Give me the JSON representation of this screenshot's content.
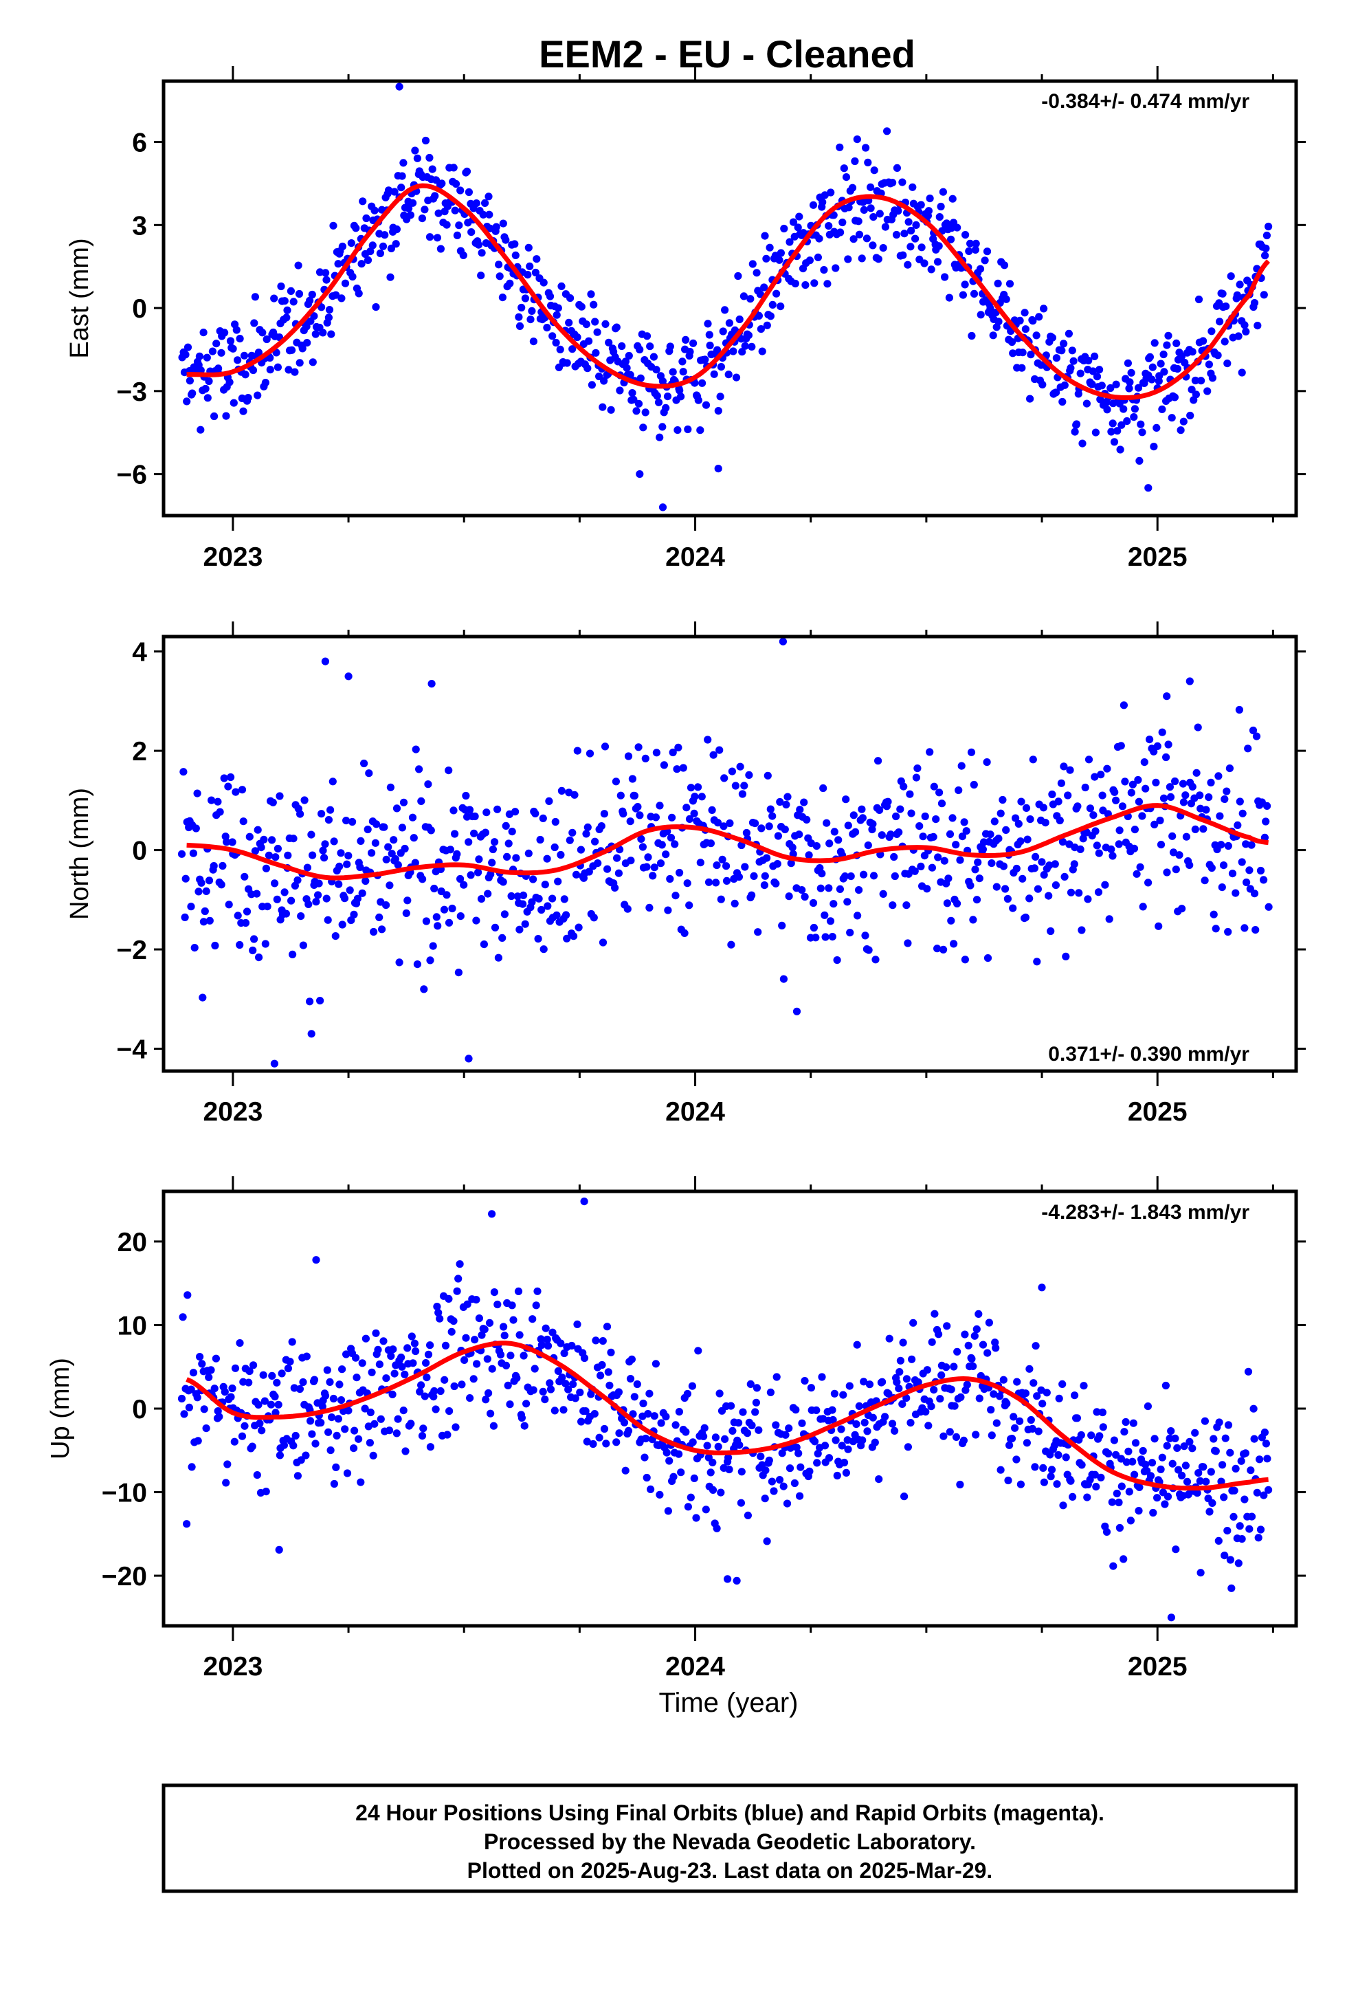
{
  "title": "EEM2  - EU - Cleaned",
  "colors": {
    "points": "#0000ff",
    "fit": "#ff0000",
    "frame": "#000000"
  },
  "chart_data": [
    {
      "type": "scatter",
      "ylabel": "East (mm)",
      "rate_label": "-0.384+/- 0.474 mm/yr",
      "rate_position": "top-right",
      "xlim": [
        2022.85,
        2025.3
      ],
      "ylim": [
        -7.5,
        8.2
      ],
      "x_ticks": [
        2023,
        2024,
        2025
      ],
      "x_tick_labels": [
        "2023",
        "2024",
        "2025"
      ],
      "y_ticks": [
        -6,
        -3,
        0,
        3,
        6
      ],
      "y_tick_labels": [
        "−6",
        "−3",
        "0",
        "3",
        "6"
      ],
      "x_minor_ticks": [
        2023.25,
        2023.5,
        2023.75,
        2024.25,
        2024.5,
        2024.75,
        2025.25
      ],
      "grid": false,
      "points": {
        "series": "Final Orbits",
        "color": "#0000ff",
        "x_start": 2022.89,
        "x_end": 2025.24,
        "count": 920,
        "scatter_sd": 0.95,
        "outliers": [
          [
            2023.36,
            8.0
          ],
          [
            2023.93,
            -7.2
          ],
          [
            2023.88,
            -6.0
          ],
          [
            2024.98,
            -6.5
          ],
          [
            2022.93,
            -4.4
          ],
          [
            2024.05,
            -5.8
          ]
        ]
      },
      "fit": {
        "series": "Model",
        "color": "#ff0000",
        "x": [
          2022.9,
          2023.0,
          2023.1,
          2023.2,
          2023.3,
          2023.4,
          2023.5,
          2023.6,
          2023.7,
          2023.8,
          2023.9,
          2024.0,
          2024.1,
          2024.2,
          2024.3,
          2024.4,
          2024.5,
          2024.6,
          2024.7,
          2024.8,
          2024.9,
          2025.0,
          2025.1,
          2025.2,
          2025.24
        ],
        "values": [
          -2.4,
          -2.3,
          -1.3,
          0.5,
          2.8,
          4.4,
          3.6,
          1.6,
          -0.6,
          -2.1,
          -2.8,
          -2.5,
          -0.8,
          1.6,
          3.6,
          4.0,
          3.1,
          1.2,
          -0.9,
          -2.5,
          -3.2,
          -3.0,
          -1.7,
          0.5,
          1.7
        ]
      }
    },
    {
      "type": "scatter",
      "ylabel": "North (mm)",
      "rate_label": "0.371+/- 0.390 mm/yr",
      "rate_position": "bottom-right",
      "xlim": [
        2022.85,
        2025.3
      ],
      "ylim": [
        -4.45,
        4.3
      ],
      "x_ticks": [
        2023,
        2024,
        2025
      ],
      "x_tick_labels": [
        "2023",
        "2024",
        "2025"
      ],
      "y_ticks": [
        -4,
        -2,
        0,
        2,
        4
      ],
      "y_tick_labels": [
        "−4",
        "−2",
        "0",
        "2",
        "4"
      ],
      "x_minor_ticks": [
        2023.25,
        2023.5,
        2023.75,
        2024.25,
        2024.5,
        2024.75,
        2025.25
      ],
      "grid": false,
      "points": {
        "series": "Final Orbits",
        "color": "#0000ff",
        "x_start": 2022.89,
        "x_end": 2025.24,
        "count": 850,
        "scatter_sd": 0.95,
        "outliers": [
          [
            2023.2,
            3.8
          ],
          [
            2023.25,
            3.5
          ],
          [
            2023.43,
            3.35
          ],
          [
            2024.19,
            4.2
          ],
          [
            2023.09,
            -4.3
          ],
          [
            2023.51,
            -4.2
          ],
          [
            2023.17,
            -3.7
          ],
          [
            2024.22,
            -3.25
          ],
          [
            2025.07,
            3.4
          ],
          [
            2025.02,
            3.1
          ]
        ]
      },
      "fit": {
        "series": "Model",
        "color": "#ff0000",
        "x": [
          2022.9,
          2023.0,
          2023.1,
          2023.2,
          2023.3,
          2023.4,
          2023.5,
          2023.6,
          2023.7,
          2023.8,
          2023.9,
          2024.0,
          2024.1,
          2024.2,
          2024.3,
          2024.4,
          2024.5,
          2024.6,
          2024.7,
          2024.8,
          2024.9,
          2025.0,
          2025.1,
          2025.2,
          2025.24
        ],
        "values": [
          0.1,
          0.0,
          -0.3,
          -0.55,
          -0.5,
          -0.35,
          -0.3,
          -0.45,
          -0.4,
          -0.05,
          0.4,
          0.45,
          0.2,
          -0.15,
          -0.2,
          0.0,
          0.05,
          -0.1,
          -0.05,
          0.3,
          0.65,
          0.9,
          0.6,
          0.25,
          0.15
        ]
      }
    },
    {
      "type": "scatter",
      "ylabel": "Up (mm)",
      "rate_label": "-4.283+/- 1.843 mm/yr",
      "rate_position": "top-right",
      "xlim": [
        2022.85,
        2025.3
      ],
      "ylim": [
        -26,
        26
      ],
      "x_ticks": [
        2023,
        2024,
        2025
      ],
      "x_tick_labels": [
        "2023",
        "2024",
        "2025"
      ],
      "y_ticks": [
        -20,
        -10,
        0,
        10,
        20
      ],
      "y_tick_labels": [
        "−20",
        "−10",
        "0",
        "10",
        "20"
      ],
      "x_minor_ticks": [
        2023.25,
        2023.5,
        2023.75,
        2024.25,
        2024.5,
        2024.75,
        2025.25
      ],
      "grid": false,
      "points": {
        "series": "Final Orbits",
        "color": "#0000ff",
        "x_start": 2022.89,
        "x_end": 2025.24,
        "count": 870,
        "scatter_sd": 4.2,
        "outliers": [
          [
            2023.76,
            24.8
          ],
          [
            2023.56,
            23.3
          ],
          [
            2022.9,
            -13.8
          ],
          [
            2023.1,
            -16.9
          ],
          [
            2024.09,
            -20.6
          ],
          [
            2024.07,
            -20.4
          ],
          [
            2025.03,
            -25.0
          ],
          [
            2025.16,
            -21.5
          ],
          [
            2023.18,
            17.8
          ],
          [
            2024.75,
            14.5
          ]
        ]
      },
      "fit": {
        "series": "Model",
        "color": "#ff0000",
        "x": [
          2022.9,
          2023.0,
          2023.1,
          2023.2,
          2023.3,
          2023.4,
          2023.5,
          2023.6,
          2023.7,
          2023.8,
          2023.9,
          2024.0,
          2024.1,
          2024.2,
          2024.3,
          2024.4,
          2024.5,
          2024.6,
          2024.7,
          2024.8,
          2024.9,
          2025.0,
          2025.1,
          2025.2,
          2025.24
        ],
        "values": [
          3.5,
          -0.5,
          -1.0,
          -0.3,
          1.5,
          4.0,
          6.8,
          7.8,
          5.5,
          1.5,
          -2.8,
          -5.0,
          -5.2,
          -4.2,
          -2.0,
          0.5,
          2.8,
          3.5,
          1.2,
          -3.5,
          -7.5,
          -9.2,
          -9.5,
          -8.8,
          -8.5
        ]
      }
    }
  ],
  "xlabel": "Time (year)",
  "footer": {
    "line1": "24 Hour Positions Using Final Orbits (blue) and Rapid Orbits (magenta).",
    "line2": "Processed by the Nevada Geodetic Laboratory.",
    "line3": "Plotted on 2025-Aug-23. Last data on 2025-Mar-29."
  }
}
